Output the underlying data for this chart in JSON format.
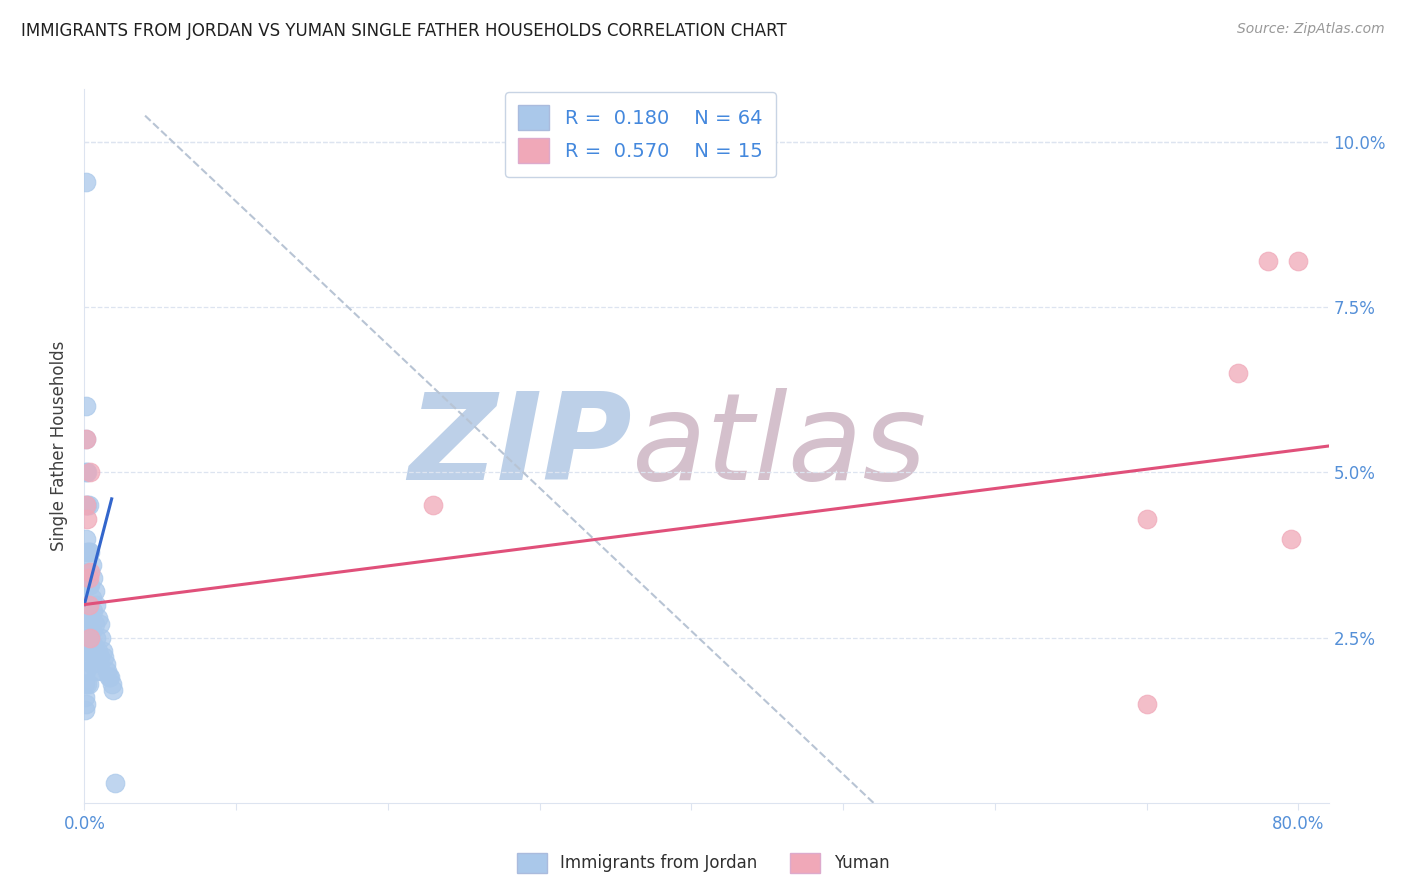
{
  "title": "IMMIGRANTS FROM JORDAN VS YUMAN SINGLE FATHER HOUSEHOLDS CORRELATION CHART",
  "source": "Source: ZipAtlas.com",
  "ylabel": "Single Father Households",
  "legend_label_1": "Immigrants from Jordan",
  "legend_label_2": "Yuman",
  "R1": 0.18,
  "N1": 64,
  "R2": 0.57,
  "N2": 15,
  "color1": "#aac8ea",
  "color2": "#f0a8b8",
  "line_color1": "#3366cc",
  "line_color2": "#e0507a",
  "legend_val_color": "#4488dd",
  "title_color": "#202020",
  "axis_tick_color": "#5590d8",
  "ylabel_color": "#404040",
  "grid_color": "#dde4f0",
  "watermark_zip_color": "#bdd0e8",
  "watermark_atlas_color": "#d4c0cc",
  "xlim": [
    0.0,
    0.82
  ],
  "ylim": [
    0.0,
    0.108
  ],
  "xtick_display": [
    0.0,
    0.8
  ],
  "xtick_minor": [
    0.1,
    0.2,
    0.3,
    0.4,
    0.5,
    0.6,
    0.7
  ],
  "ytick_vals": [
    0.025,
    0.05,
    0.075,
    0.1
  ],
  "blue_x": [
    0.0005,
    0.0005,
    0.0005,
    0.0005,
    0.0005,
    0.0005,
    0.0005,
    0.0005,
    0.001,
    0.001,
    0.001,
    0.001,
    0.001,
    0.001,
    0.001,
    0.001,
    0.001,
    0.001,
    0.001,
    0.002,
    0.002,
    0.002,
    0.002,
    0.002,
    0.002,
    0.002,
    0.003,
    0.003,
    0.003,
    0.003,
    0.003,
    0.003,
    0.004,
    0.004,
    0.004,
    0.004,
    0.005,
    0.005,
    0.005,
    0.005,
    0.006,
    0.006,
    0.006,
    0.007,
    0.007,
    0.007,
    0.008,
    0.008,
    0.008,
    0.009,
    0.009,
    0.01,
    0.01,
    0.011,
    0.011,
    0.012,
    0.013,
    0.014,
    0.015,
    0.016,
    0.017,
    0.018,
    0.019,
    0.02
  ],
  "blue_y": [
    0.03,
    0.027,
    0.024,
    0.022,
    0.02,
    0.018,
    0.016,
    0.014,
    0.094,
    0.06,
    0.055,
    0.05,
    0.045,
    0.04,
    0.035,
    0.03,
    0.025,
    0.02,
    0.015,
    0.05,
    0.045,
    0.038,
    0.033,
    0.028,
    0.023,
    0.018,
    0.045,
    0.038,
    0.033,
    0.028,
    0.023,
    0.018,
    0.038,
    0.033,
    0.028,
    0.023,
    0.036,
    0.031,
    0.026,
    0.021,
    0.034,
    0.029,
    0.024,
    0.032,
    0.027,
    0.022,
    0.03,
    0.025,
    0.02,
    0.028,
    0.023,
    0.027,
    0.022,
    0.025,
    0.02,
    0.023,
    0.022,
    0.021,
    0.02,
    0.019,
    0.019,
    0.018,
    0.017,
    0.003
  ],
  "pink_x": [
    0.001,
    0.001,
    0.002,
    0.003,
    0.003,
    0.004,
    0.004,
    0.004,
    0.23,
    0.7,
    0.7,
    0.76,
    0.78,
    0.795,
    0.8
  ],
  "pink_y": [
    0.055,
    0.045,
    0.043,
    0.034,
    0.03,
    0.05,
    0.035,
    0.025,
    0.045,
    0.043,
    0.015,
    0.065,
    0.082,
    0.04,
    0.082
  ],
  "blue_line_x": [
    0.0,
    0.018
  ],
  "blue_line_y": [
    0.03,
    0.046
  ],
  "pink_line_x": [
    0.0,
    0.82
  ],
  "pink_line_y": [
    0.03,
    0.054
  ],
  "ref_line_x": [
    0.04,
    0.52
  ],
  "ref_line_y": [
    0.104,
    0.0
  ]
}
